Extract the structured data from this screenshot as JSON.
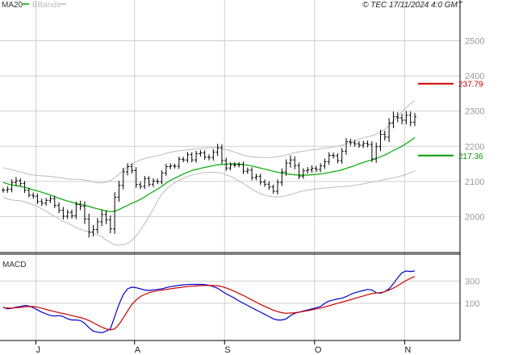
{
  "header": {
    "legend_ma": "MA20",
    "legend_bbands": "BBands",
    "source": "© TEC 17/11/2024 4:0 GMT"
  },
  "panels": {
    "macd_label": "MACD"
  },
  "colors": {
    "price": "#000000",
    "ma": "#00aa00",
    "bands": "#bbbbbb",
    "macd": "#0000cc",
    "signal": "#cc0000",
    "resistance": "#cc0000",
    "support": "#009900",
    "grid": "#cfcfcf"
  },
  "chart_data": [
    {
      "type": "bar",
      "name": "price",
      "ylim": [
        190,
        257
      ],
      "y_ticks": [
        200,
        210,
        220,
        230,
        240,
        250
      ],
      "y_tick_labels": [
        "2000",
        "2100",
        "2200",
        "2300",
        "2400",
        "2500"
      ],
      "x_month_labels": [
        {
          "label": "J",
          "index": 8
        },
        {
          "label": "A",
          "index": 31
        },
        {
          "label": "S",
          "index": 52
        },
        {
          "label": "O",
          "index": 73
        },
        {
          "label": "N",
          "index": 94
        }
      ],
      "ohlc_close": [
        207.5,
        207.8,
        209.7,
        210.2,
        209.4,
        207.5,
        206.1,
        205.8,
        204.3,
        203.8,
        204.6,
        205.1,
        203.2,
        201.8,
        200.1,
        201.2,
        200.2,
        203.4,
        202.9,
        199.3,
        195.6,
        196.3,
        198.5,
        200.6,
        199.1,
        196.5,
        205.5,
        208.9,
        212.7,
        214.2,
        213.1,
        209.1,
        208.6,
        210.8,
        209.2,
        210.1,
        209.9,
        212.4,
        214.2,
        214.4,
        214.3,
        216.3,
        216.1,
        217.6,
        216.1,
        217.9,
        218.1,
        216.9,
        216.8,
        218.3,
        219.6,
        215.9,
        213.8,
        214.7,
        214.7,
        214.8,
        212.9,
        213.2,
        211.1,
        211.4,
        209.8,
        209.2,
        208.4,
        207.2,
        209.7,
        212.7,
        215.2,
        216.1,
        214.5,
        211.5,
        213.0,
        213.3,
        213.7,
        213.4,
        214.4,
        215.6,
        217.4,
        217.3,
        215.9,
        218.6,
        221.3,
        221.0,
        220.7,
        220.3,
        220.8,
        220.5,
        216.4,
        219.9,
        223.4,
        222.6,
        226.6,
        228.4,
        228.1,
        227.4,
        228.8,
        226.8,
        228.4
      ],
      "ohlc_range": [
        1.4,
        1.6,
        1.8,
        2.1,
        1.5,
        1.5,
        1.3,
        1.5,
        1.4,
        1.6,
        1.4,
        1.5,
        1.6,
        1.7,
        1.9,
        1.6,
        1.5,
        1.8,
        2.2,
        2.8,
        3.1,
        2.6,
        2.2,
        2.5,
        2.4,
        2.5,
        2.9,
        2.6,
        2.3,
        2.0,
        1.8,
        1.9,
        1.6,
        1.5,
        1.4,
        1.6,
        1.4,
        1.5,
        1.6,
        1.5,
        1.3,
        1.5,
        1.4,
        1.6,
        1.4,
        1.6,
        1.7,
        1.5,
        1.6,
        1.8,
        2.2,
        1.8,
        1.6,
        1.4,
        1.5,
        1.4,
        1.6,
        1.5,
        1.6,
        1.5,
        1.6,
        1.5,
        1.6,
        1.4,
        1.8,
        2.0,
        2.2,
        2.6,
        2.1,
        1.7,
        1.5,
        1.6,
        1.7,
        1.5,
        1.6,
        1.7,
        1.8,
        1.6,
        1.5,
        1.8,
        2.0,
        1.7,
        1.6,
        1.5,
        1.6,
        1.6,
        1.8,
        2.3,
        2.6,
        2.0,
        2.8,
        2.9,
        2.5,
        2.3,
        2.4,
        2.2,
        2.1
      ],
      "ma20": [
        209.7,
        209.3,
        209.0,
        208.8,
        208.6,
        208.3,
        208.0,
        207.6,
        207.3,
        206.9,
        206.5,
        206.1,
        205.7,
        205.2,
        204.8,
        204.4,
        204.1,
        203.7,
        203.5,
        203.2,
        202.9,
        202.5,
        202.2,
        201.9,
        201.6,
        201.4,
        201.5,
        202.0,
        202.6,
        203.2,
        203.8,
        204.3,
        204.9,
        205.6,
        206.4,
        207.1,
        207.8,
        208.6,
        209.5,
        210.3,
        210.9,
        211.5,
        212.1,
        212.6,
        213.1,
        213.4,
        213.7,
        214.0,
        214.2,
        214.5,
        214.7,
        214.8,
        214.9,
        215.0,
        215.0,
        214.9,
        214.8,
        214.6,
        214.4,
        214.1,
        213.8,
        213.5,
        213.2,
        212.9,
        212.6,
        212.4,
        212.2,
        212.0,
        211.9,
        211.8,
        211.8,
        211.8,
        211.9,
        212.0,
        212.1,
        212.3,
        212.5,
        212.8,
        213.0,
        213.3,
        213.7,
        214.1,
        214.5,
        215.0,
        215.4,
        215.8,
        216.1,
        216.5,
        217.0,
        217.5,
        218.1,
        218.8,
        219.4,
        220.0,
        220.8,
        221.6,
        222.5
      ],
      "bb_upper": [
        213.9,
        213.6,
        213.3,
        213.0,
        212.7,
        212.4,
        212.0,
        211.8,
        211.7,
        211.6,
        211.5,
        211.4,
        211.3,
        211.1,
        210.9,
        210.7,
        210.6,
        210.6,
        210.6,
        210.4,
        210.2,
        209.9,
        209.6,
        209.6,
        209.8,
        210.2,
        211.0,
        212.0,
        213.1,
        214.2,
        215.0,
        215.6,
        216.1,
        216.5,
        216.8,
        217.0,
        217.3,
        217.6,
        218.0,
        218.3,
        218.5,
        218.7,
        218.8,
        219.0,
        219.1,
        219.3,
        219.4,
        219.5,
        219.6,
        219.7,
        219.6,
        219.3,
        219.0,
        218.7,
        218.3,
        217.9,
        217.5,
        217.2,
        217.0,
        216.9,
        216.8,
        216.8,
        216.8,
        216.9,
        217.0,
        217.2,
        217.5,
        217.8,
        218.2,
        218.4,
        218.6,
        218.8,
        219.0,
        219.1,
        219.3,
        219.5,
        219.6,
        219.8,
        220.0,
        220.3,
        220.7,
        221.1,
        221.6,
        222.0,
        222.4,
        222.7,
        223.0,
        223.4,
        224.0,
        224.8,
        225.9,
        227.2,
        228.5,
        229.8,
        231.0,
        232.2,
        233.0
      ],
      "bb_lower": [
        205.5,
        205.0,
        204.7,
        204.6,
        204.5,
        204.2,
        203.8,
        203.4,
        202.9,
        202.2,
        201.5,
        200.8,
        200.1,
        199.3,
        198.6,
        198.1,
        197.6,
        196.8,
        196.4,
        196.0,
        195.6,
        195.2,
        194.8,
        194.2,
        193.4,
        192.6,
        192.0,
        191.9,
        192.0,
        192.4,
        193.2,
        194.5,
        196.2,
        198.0,
        200.0,
        202.1,
        204.4,
        206.4,
        207.8,
        208.8,
        209.6,
        210.3,
        210.9,
        211.4,
        211.8,
        212.1,
        212.3,
        212.5,
        212.6,
        212.6,
        212.5,
        212.3,
        211.9,
        211.4,
        210.8,
        210.1,
        209.4,
        208.6,
        207.8,
        207.1,
        206.5,
        206.1,
        205.8,
        205.6,
        205.6,
        205.7,
        205.9,
        206.2,
        206.6,
        207.0,
        207.3,
        207.5,
        207.7,
        207.9,
        208.0,
        208.1,
        208.2,
        208.3,
        208.4,
        208.5,
        208.6,
        208.7,
        208.9,
        209.1,
        209.3,
        209.6,
        209.8,
        210.0,
        210.3,
        210.5,
        210.8,
        211.0,
        211.3,
        211.6,
        212.0,
        212.5,
        213.0
      ],
      "levels": [
        {
          "name": "resistance",
          "value": 237.79,
          "label": "237.79"
        },
        {
          "name": "support",
          "value": 217.36,
          "label": "217.36"
        }
      ]
    },
    {
      "type": "line",
      "name": "macd",
      "ylim": [
        -220,
        520
      ],
      "y_ticks": [
        100,
        300
      ],
      "y_tick_labels": [
        "100",
        "300"
      ],
      "series": [
        {
          "values": [
            65,
            50,
            55,
            65,
            70,
            80,
            75,
            60,
            40,
            20,
            5,
            -10,
            -15,
            -10,
            -20,
            -40,
            -50,
            -50,
            -55,
            -80,
            -120,
            -150,
            -160,
            -165,
            -150,
            -130,
            -20,
            90,
            180,
            230,
            245,
            240,
            230,
            220,
            215,
            220,
            225,
            230,
            240,
            250,
            255,
            262,
            265,
            268,
            270,
            270,
            270,
            268,
            262,
            250,
            235,
            210,
            185,
            165,
            145,
            120,
            100,
            80,
            60,
            40,
            20,
            0,
            -20,
            -40,
            -50,
            -50,
            -40,
            -10,
            10,
            20,
            30,
            40,
            50,
            60,
            70,
            100,
            120,
            130,
            140,
            145,
            160,
            180,
            195,
            205,
            215,
            225,
            220,
            195,
            190,
            205,
            230,
            275,
            330,
            375,
            390,
            385,
            390
          ]
        },
        {
          "values": [
            60,
            58,
            57,
            60,
            63,
            68,
            71,
            70,
            65,
            55,
            45,
            35,
            25,
            15,
            8,
            0,
            -10,
            -20,
            -28,
            -40,
            -55,
            -75,
            -95,
            -115,
            -130,
            -140,
            -130,
            -90,
            -30,
            30,
            90,
            130,
            160,
            180,
            195,
            205,
            213,
            218,
            225,
            230,
            236,
            241,
            246,
            250,
            253,
            256,
            259,
            260,
            261,
            260,
            258,
            250,
            238,
            223,
            206,
            188,
            170,
            150,
            130,
            110,
            90,
            72,
            55,
            38,
            25,
            15,
            10,
            12,
            15,
            20,
            27,
            34,
            41,
            49,
            57,
            67,
            78,
            89,
            100,
            110,
            121,
            132,
            144,
            155,
            166,
            177,
            187,
            192,
            196,
            205,
            218,
            236,
            258,
            282,
            305,
            325,
            340
          ]
        }
      ]
    }
  ]
}
